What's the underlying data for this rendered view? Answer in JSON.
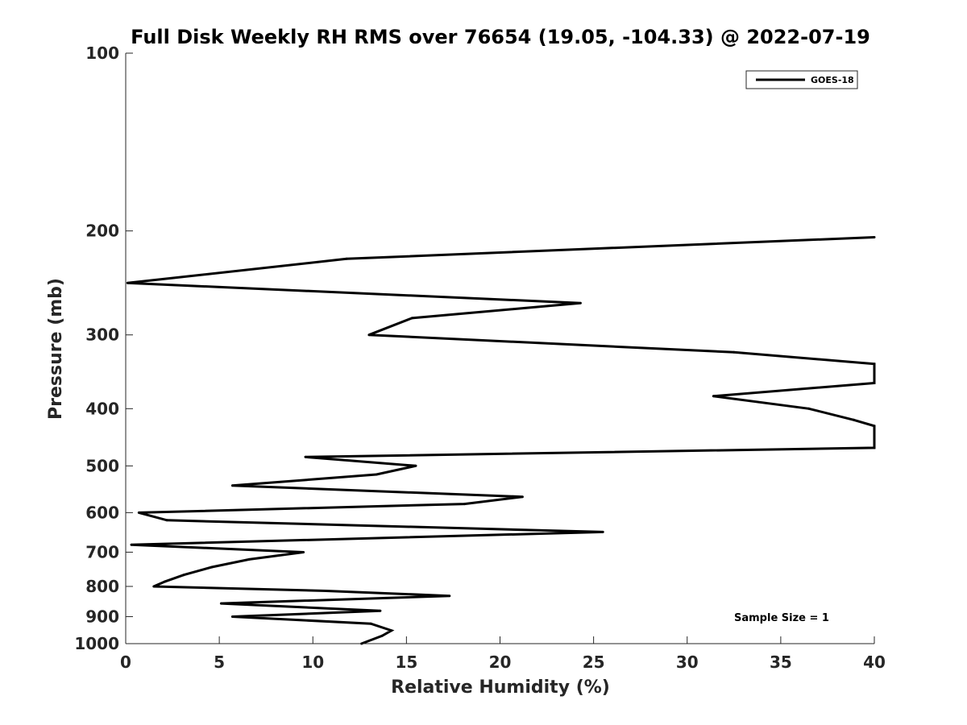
{
  "chart_data": {
    "type": "line",
    "title": "Full Disk Weekly RH RMS over 76654 (19.05, -104.33) @ 2022-07-19",
    "xlabel": "Relative Humidity (%)",
    "ylabel": "Pressure (mb)",
    "xlim": [
      0,
      40
    ],
    "ylim": [
      1000,
      100
    ],
    "yscale": "log",
    "grid": false,
    "x_ticks": [
      0,
      5,
      10,
      15,
      20,
      25,
      30,
      35,
      40
    ],
    "y_ticks": [
      100,
      200,
      300,
      400,
      500,
      600,
      700,
      800,
      900,
      1000
    ],
    "legend": {
      "position": "top-right",
      "entries": [
        "GOES-18"
      ]
    },
    "annotation": "Sample Size = 1",
    "series": [
      {
        "name": "GOES-18",
        "color": "#000000",
        "points": [
          {
            "x": 40.0,
            "y": 205
          },
          {
            "x": 11.8,
            "y": 223
          },
          {
            "x": 0.1,
            "y": 245
          },
          {
            "x": 24.3,
            "y": 265
          },
          {
            "x": 15.3,
            "y": 281
          },
          {
            "x": 13.0,
            "y": 300
          },
          {
            "x": 32.5,
            "y": 321
          },
          {
            "x": 40.0,
            "y": 336
          },
          {
            "x": 40.0,
            "y": 362
          },
          {
            "x": 31.4,
            "y": 381
          },
          {
            "x": 36.5,
            "y": 400
          },
          {
            "x": 38.9,
            "y": 418
          },
          {
            "x": 40.0,
            "y": 428
          },
          {
            "x": 40.0,
            "y": 466
          },
          {
            "x": 9.6,
            "y": 483
          },
          {
            "x": 15.5,
            "y": 500
          },
          {
            "x": 13.4,
            "y": 517
          },
          {
            "x": 5.7,
            "y": 540
          },
          {
            "x": 21.2,
            "y": 564
          },
          {
            "x": 18.1,
            "y": 580
          },
          {
            "x": 0.7,
            "y": 600
          },
          {
            "x": 2.2,
            "y": 618
          },
          {
            "x": 25.5,
            "y": 647
          },
          {
            "x": 0.3,
            "y": 680
          },
          {
            "x": 9.5,
            "y": 700
          },
          {
            "x": 6.6,
            "y": 720
          },
          {
            "x": 4.6,
            "y": 742
          },
          {
            "x": 3.1,
            "y": 765
          },
          {
            "x": 2.1,
            "y": 785
          },
          {
            "x": 1.5,
            "y": 800
          },
          {
            "x": 10.7,
            "y": 814
          },
          {
            "x": 17.3,
            "y": 830
          },
          {
            "x": 5.1,
            "y": 855
          },
          {
            "x": 13.6,
            "y": 880
          },
          {
            "x": 5.7,
            "y": 900
          },
          {
            "x": 13.1,
            "y": 925
          },
          {
            "x": 14.2,
            "y": 950
          },
          {
            "x": 13.7,
            "y": 970
          },
          {
            "x": 12.6,
            "y": 1000
          }
        ]
      }
    ]
  }
}
